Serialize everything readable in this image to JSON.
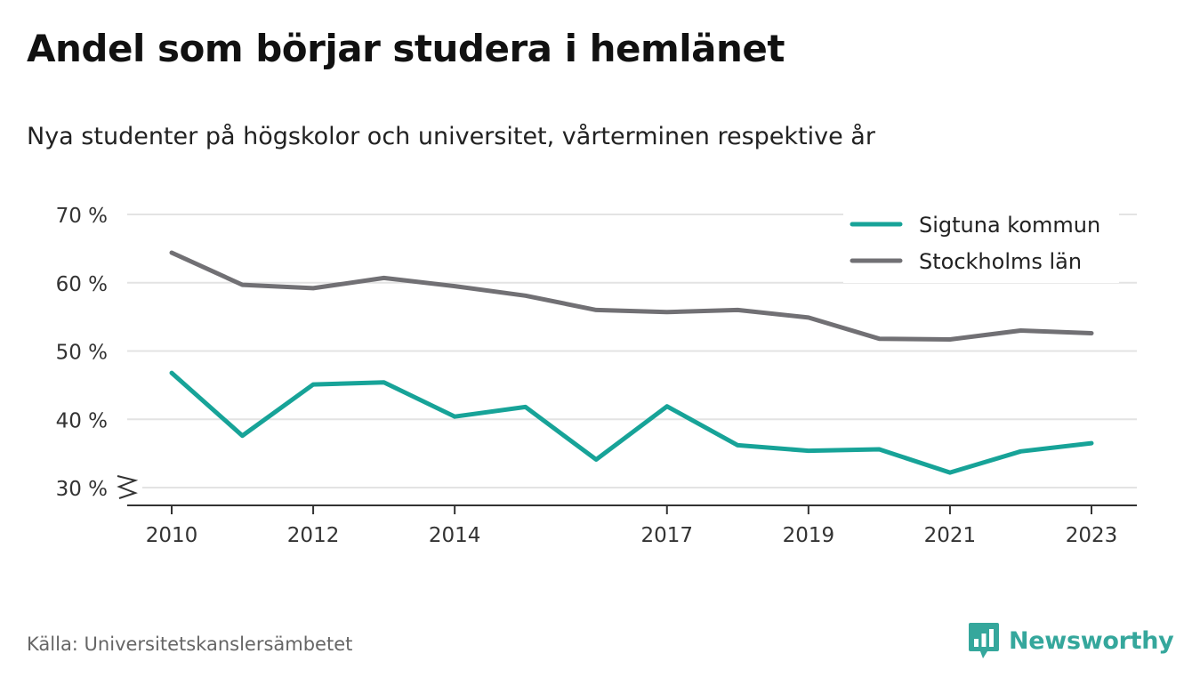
{
  "title": "Andel som börjar studera i hemlänet",
  "subtitle": "Nya studenter på högskolor och universitet, vårterminen respektive år",
  "source": "Källa: Universitetskanslersämbetet",
  "brand": {
    "name": "Newsworthy",
    "logo_icon": "bar-chart-speech-bubble-icon",
    "color": "#35a79c"
  },
  "chart_data": {
    "type": "line",
    "x": [
      2010,
      2011,
      2012,
      2013,
      2014,
      2015,
      2016,
      2017,
      2018,
      2019,
      2020,
      2021,
      2022,
      2023
    ],
    "x_tick_labels": [
      "2010",
      "2012",
      "2014",
      "2017",
      "2019",
      "2021",
      "2023"
    ],
    "x_tick_values": [
      2010,
      2012,
      2014,
      2017,
      2019,
      2021,
      2023
    ],
    "y_tick_labels": [
      "30 %",
      "40 %",
      "50 %",
      "60 %",
      "70 %"
    ],
    "y_tick_values": [
      30,
      40,
      50,
      60,
      70
    ],
    "ylim": [
      30,
      70
    ],
    "y_axis_break": true,
    "grid": "horizontal",
    "legend_position": "top-right",
    "series": [
      {
        "name": "Sigtuna kommun",
        "color": "#17a398",
        "values": [
          46.8,
          37.6,
          45.1,
          45.4,
          40.4,
          41.8,
          34.1,
          41.9,
          36.2,
          35.4,
          35.6,
          32.2,
          35.3,
          36.5
        ]
      },
      {
        "name": "Stockholms län",
        "color": "#717074",
        "values": [
          64.4,
          59.7,
          59.2,
          60.7,
          59.5,
          58.1,
          56.0,
          55.7,
          56.0,
          54.9,
          51.8,
          51.7,
          53.0,
          52.6
        ]
      }
    ]
  }
}
